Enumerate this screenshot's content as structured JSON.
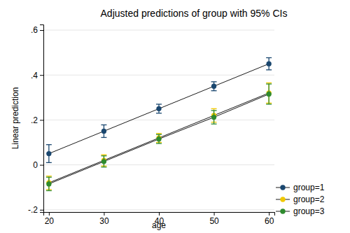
{
  "chart_data": {
    "type": "line",
    "title": "Adjusted predictions of group with 95% CIs",
    "x_label": "age",
    "y_label": "Linear prediction",
    "x": [
      20,
      30,
      40,
      50,
      60
    ],
    "xlim": [
      19,
      61
    ],
    "xticks": [
      20,
      30,
      40,
      50,
      60
    ],
    "ylim": [
      -0.21,
      0.625
    ],
    "yticks": [
      {
        "value": -0.2,
        "label": "-.2"
      },
      0,
      {
        "value": 0.2,
        "label": ".2"
      },
      {
        "value": 0.4,
        "label": ".4"
      },
      {
        "value": 0.6,
        "label": ".6"
      }
    ],
    "grid": true,
    "legend": "bottom-right",
    "marker": "circle",
    "series": [
      {
        "name": "group=1",
        "color": "#1a476f",
        "values": [
          0.05,
          0.15,
          0.25,
          0.35,
          0.45
        ],
        "errors": [
          0.04,
          0.028,
          0.02,
          0.02,
          0.027
        ]
      },
      {
        "name": "group=2",
        "color": "#f0c800",
        "values": [
          -0.08,
          0.02,
          0.12,
          0.22,
          0.32
        ],
        "errors": [
          0.03,
          0.025,
          0.02,
          0.03,
          0.045
        ]
      },
      {
        "name": "group=3",
        "color": "#2e8b2e",
        "values": [
          -0.085,
          0.015,
          0.115,
          0.212,
          0.315
        ],
        "errors": [
          0.03,
          0.025,
          0.02,
          0.03,
          0.045
        ]
      }
    ]
  }
}
